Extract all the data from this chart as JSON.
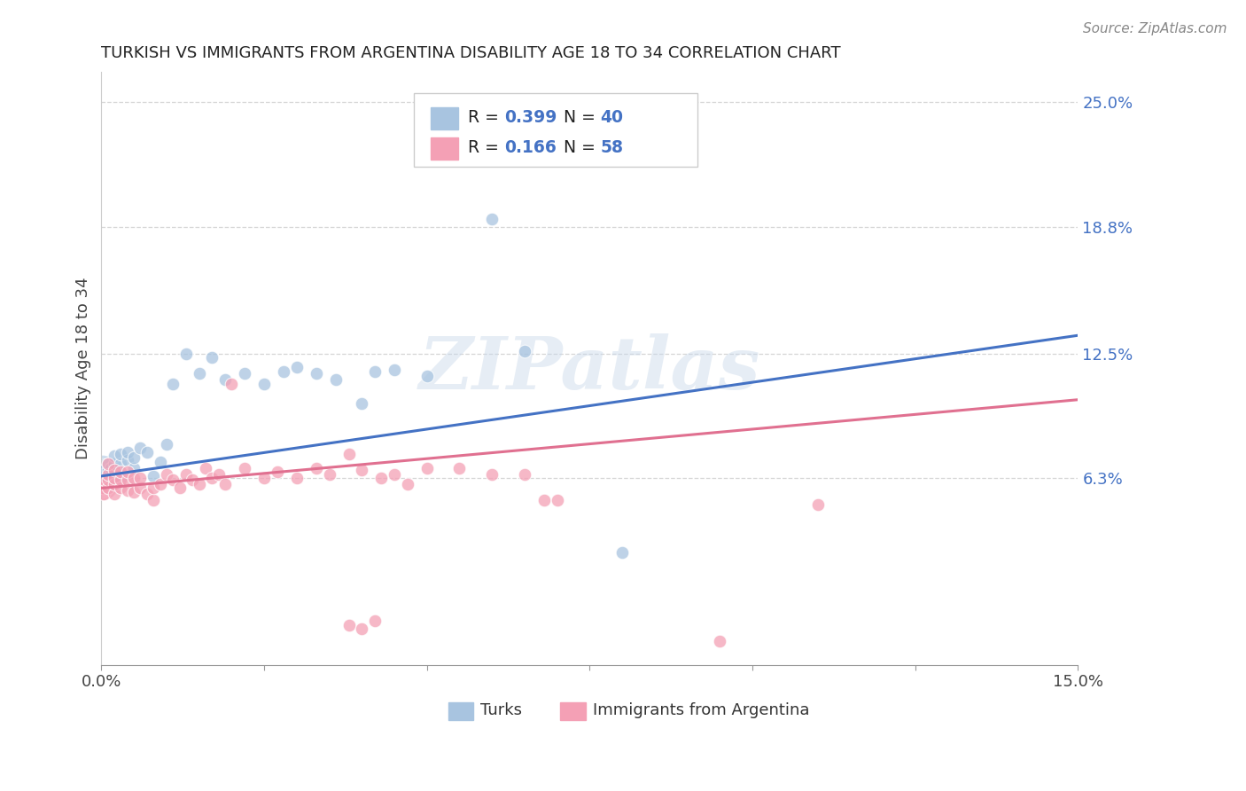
{
  "title": "TURKISH VS IMMIGRANTS FROM ARGENTINA DISABILITY AGE 18 TO 34 CORRELATION CHART",
  "source": "Source: ZipAtlas.com",
  "ylabel": "Disability Age 18 to 34",
  "xlim": [
    0.0,
    0.15
  ],
  "ylim": [
    -0.03,
    0.265
  ],
  "ytick_labels_right": [
    "25.0%",
    "18.8%",
    "12.5%",
    "6.3%"
  ],
  "ytick_vals_right": [
    0.25,
    0.188,
    0.125,
    0.063
  ],
  "grid_color": "#cccccc",
  "background_color": "#ffffff",
  "watermark_text": "ZIPatlas",
  "turks_color": "#a8c4e0",
  "argentina_color": "#f4a0b5",
  "turks_line_color": "#4472c4",
  "argentina_line_color": "#e07090",
  "turks_x": [
    0.0002,
    0.0003,
    0.0005,
    0.001,
    0.001,
    0.001,
    0.0015,
    0.002,
    0.002,
    0.002,
    0.003,
    0.003,
    0.003,
    0.004,
    0.004,
    0.005,
    0.005,
    0.006,
    0.007,
    0.008,
    0.009,
    0.01,
    0.011,
    0.013,
    0.015,
    0.017,
    0.019,
    0.022,
    0.025,
    0.028,
    0.03,
    0.033,
    0.036,
    0.04,
    0.042,
    0.045,
    0.05,
    0.06,
    0.065,
    0.08
  ],
  "turks_y": [
    0.065,
    0.063,
    0.067,
    0.062,
    0.067,
    0.07,
    0.068,
    0.066,
    0.07,
    0.074,
    0.063,
    0.07,
    0.075,
    0.072,
    0.076,
    0.068,
    0.073,
    0.078,
    0.076,
    0.064,
    0.071,
    0.08,
    0.11,
    0.125,
    0.115,
    0.123,
    0.112,
    0.115,
    0.11,
    0.116,
    0.118,
    0.115,
    0.112,
    0.1,
    0.116,
    0.117,
    0.114,
    0.192,
    0.126,
    0.026
  ],
  "argentina_x": [
    0.0002,
    0.0003,
    0.0005,
    0.001,
    0.001,
    0.001,
    0.001,
    0.002,
    0.002,
    0.002,
    0.002,
    0.003,
    0.003,
    0.003,
    0.004,
    0.004,
    0.004,
    0.005,
    0.005,
    0.006,
    0.006,
    0.007,
    0.008,
    0.008,
    0.009,
    0.01,
    0.011,
    0.012,
    0.013,
    0.014,
    0.015,
    0.016,
    0.017,
    0.018,
    0.019,
    0.02,
    0.022,
    0.025,
    0.027,
    0.03,
    0.033,
    0.035,
    0.038,
    0.04,
    0.043,
    0.045,
    0.047,
    0.05,
    0.055,
    0.06,
    0.065,
    0.068,
    0.07,
    0.038,
    0.04,
    0.042,
    0.095,
    0.11
  ],
  "argentina_y": [
    0.058,
    0.055,
    0.062,
    0.058,
    0.062,
    0.065,
    0.07,
    0.055,
    0.06,
    0.063,
    0.067,
    0.058,
    0.062,
    0.066,
    0.057,
    0.062,
    0.066,
    0.056,
    0.063,
    0.058,
    0.063,
    0.055,
    0.052,
    0.058,
    0.06,
    0.065,
    0.062,
    0.058,
    0.065,
    0.062,
    0.06,
    0.068,
    0.063,
    0.065,
    0.06,
    0.11,
    0.068,
    0.063,
    0.066,
    0.063,
    0.068,
    0.065,
    0.075,
    0.067,
    0.063,
    0.065,
    0.06,
    0.068,
    0.068,
    0.065,
    0.065,
    0.052,
    0.052,
    -0.01,
    -0.012,
    -0.008,
    -0.018,
    0.05
  ],
  "turks_bubble_x": [
    0.0001
  ],
  "turks_bubble_y": [
    0.065
  ],
  "turks_bubble_s": 900,
  "argentina_bubble_x": [
    0.0001
  ],
  "argentina_bubble_y": [
    0.06
  ],
  "argentina_bubble_s": 600
}
